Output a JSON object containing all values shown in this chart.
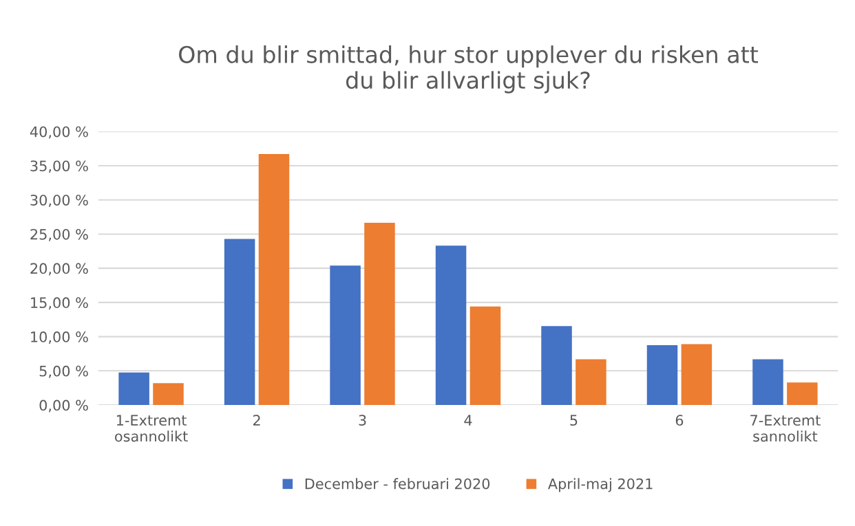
{
  "chart_data": {
    "type": "bar",
    "title": "Om du blir smittad, hur stor upplever du risken att\ndu blir allvarligt sjuk?",
    "categories": [
      "1-Extremt\nosannolikt",
      "2",
      "3",
      "4",
      "5",
      "6",
      "7-Extremt\nsannolikt"
    ],
    "series": [
      {
        "name": "December - februari 2020",
        "color": "#4472c4",
        "values": [
          4.75,
          24.3,
          20.4,
          23.3,
          11.55,
          8.75,
          6.7
        ]
      },
      {
        "name": "April-maj 2021",
        "color": "#ed7d31",
        "values": [
          3.2,
          36.7,
          26.65,
          14.4,
          6.7,
          8.9,
          3.3
        ]
      }
    ],
    "ylim": [
      0,
      40
    ],
    "yticks": [
      {
        "value": 0,
        "label": "0,00 %"
      },
      {
        "value": 5,
        "label": "5,00 %"
      },
      {
        "value": 10,
        "label": "10,00 %"
      },
      {
        "value": 15,
        "label": "15,00 %"
      },
      {
        "value": 20,
        "label": "20,00 %"
      },
      {
        "value": 25,
        "label": "25,00 %"
      },
      {
        "value": 30,
        "label": "30,00 %"
      },
      {
        "value": 35,
        "label": "35,00 %"
      },
      {
        "value": 40,
        "label": "40,00 %"
      }
    ],
    "grid": "y",
    "legend": "bottom"
  }
}
